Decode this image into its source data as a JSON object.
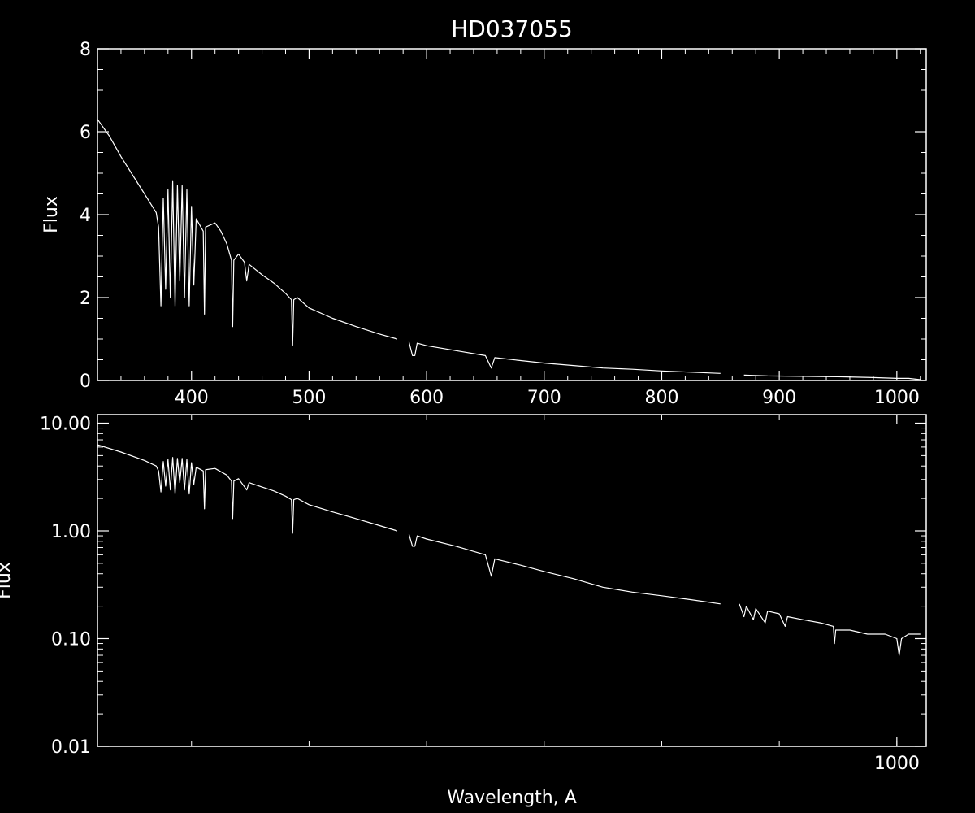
{
  "title": "HD037055",
  "colors": {
    "background": "#000000",
    "foreground": "#ffffff"
  },
  "chart_data": [
    {
      "type": "line",
      "panel": "top",
      "scale": "linear",
      "ylabel": "Flux",
      "xlabel": "",
      "xlim": [
        320,
        1025
      ],
      "ylim": [
        0,
        8
      ],
      "x_ticks": [
        {
          "value": 400,
          "label": "400"
        },
        {
          "value": 500,
          "label": "500"
        },
        {
          "value": 600,
          "label": "600"
        },
        {
          "value": 700,
          "label": "700"
        },
        {
          "value": 800,
          "label": "800"
        },
        {
          "value": 900,
          "label": "900"
        },
        {
          "value": 1000,
          "label": "1000"
        }
      ],
      "y_ticks": [
        {
          "value": 0,
          "label": "0"
        },
        {
          "value": 2,
          "label": "2"
        },
        {
          "value": 4,
          "label": "4"
        },
        {
          "value": 6,
          "label": "6"
        },
        {
          "value": 8,
          "label": "8"
        }
      ],
      "series": [
        {
          "segments": [
            [
              [
                320,
                6.3
              ],
              [
                330,
                5.9
              ],
              [
                340,
                5.4
              ],
              [
                350,
                4.95
              ],
              [
                360,
                4.5
              ],
              [
                370,
                4.05
              ],
              [
                372,
                3.7
              ],
              [
                374,
                1.8
              ],
              [
                376,
                4.4
              ],
              [
                378,
                2.2
              ],
              [
                380,
                4.6
              ],
              [
                382,
                2.0
              ],
              [
                384,
                4.8
              ],
              [
                386,
                1.8
              ],
              [
                388,
                4.7
              ],
              [
                390,
                2.4
              ],
              [
                392,
                4.7
              ],
              [
                394,
                2.0
              ],
              [
                396,
                4.6
              ],
              [
                398,
                1.8
              ],
              [
                400,
                4.2
              ],
              [
                402,
                2.3
              ],
              [
                404,
                3.9
              ],
              [
                406,
                3.8
              ],
              [
                410,
                3.6
              ],
              [
                411,
                1.6
              ],
              [
                412,
                3.7
              ],
              [
                420,
                3.8
              ],
              [
                425,
                3.6
              ],
              [
                430,
                3.3
              ],
              [
                434,
                2.9
              ],
              [
                435,
                1.3
              ],
              [
                436,
                2.9
              ],
              [
                440,
                3.05
              ],
              [
                445,
                2.85
              ],
              [
                447,
                2.4
              ],
              [
                449,
                2.8
              ],
              [
                460,
                2.55
              ],
              [
                470,
                2.35
              ],
              [
                480,
                2.1
              ],
              [
                485,
                1.95
              ],
              [
                486,
                0.85
              ],
              [
                487,
                1.95
              ],
              [
                490,
                2.0
              ],
              [
                500,
                1.75
              ],
              [
                520,
                1.5
              ],
              [
                540,
                1.3
              ],
              [
                560,
                1.12
              ],
              [
                575,
                1.0
              ]
            ],
            [
              [
                585,
                0.93
              ],
              [
                588,
                0.6
              ],
              [
                590,
                0.6
              ],
              [
                592,
                0.9
              ],
              [
                600,
                0.84
              ],
              [
                625,
                0.72
              ],
              [
                650,
                0.6
              ],
              [
                655,
                0.3
              ],
              [
                658,
                0.55
              ],
              [
                680,
                0.48
              ],
              [
                700,
                0.42
              ],
              [
                725,
                0.36
              ],
              [
                750,
                0.3
              ],
              [
                775,
                0.27
              ],
              [
                800,
                0.23
              ],
              [
                825,
                0.2
              ],
              [
                850,
                0.17
              ]
            ],
            [
              [
                870,
                0.13
              ],
              [
                890,
                0.11
              ],
              [
                920,
                0.1
              ],
              [
                950,
                0.09
              ],
              [
                980,
                0.07
              ],
              [
                1000,
                0.05
              ],
              [
                1010,
                0.05
              ],
              [
                1020,
                0.02
              ]
            ]
          ]
        }
      ]
    },
    {
      "type": "line",
      "panel": "bottom",
      "scale": "log",
      "ylabel": "Flux",
      "xlabel": "Wavelength, A",
      "xlim": [
        320,
        1025
      ],
      "ylim": [
        0.01,
        12
      ],
      "x_ticks": [
        {
          "value": 1000,
          "label": "1000"
        }
      ],
      "y_ticks": [
        {
          "value": 0.01,
          "label": "0.01"
        },
        {
          "value": 0.1,
          "label": "0.10"
        },
        {
          "value": 1,
          "label": "1.00"
        },
        {
          "value": 10,
          "label": "10.00"
        }
      ],
      "series": [
        {
          "segments": [
            [
              [
                320,
                6.3
              ],
              [
                340,
                5.4
              ],
              [
                360,
                4.5
              ],
              [
                370,
                4.0
              ],
              [
                372,
                3.6
              ],
              [
                374,
                2.3
              ],
              [
                376,
                4.4
              ],
              [
                378,
                2.6
              ],
              [
                380,
                4.6
              ],
              [
                382,
                2.4
              ],
              [
                384,
                4.8
              ],
              [
                386,
                2.2
              ],
              [
                388,
                4.7
              ],
              [
                390,
                2.8
              ],
              [
                392,
                4.7
              ],
              [
                394,
                2.4
              ],
              [
                396,
                4.6
              ],
              [
                398,
                2.2
              ],
              [
                400,
                4.3
              ],
              [
                402,
                2.7
              ],
              [
                404,
                3.9
              ],
              [
                406,
                3.8
              ],
              [
                410,
                3.6
              ],
              [
                411,
                1.6
              ],
              [
                412,
                3.7
              ],
              [
                420,
                3.8
              ],
              [
                430,
                3.3
              ],
              [
                434,
                2.9
              ],
              [
                435,
                1.3
              ],
              [
                436,
                2.9
              ],
              [
                440,
                3.05
              ],
              [
                447,
                2.4
              ],
              [
                449,
                2.8
              ],
              [
                460,
                2.55
              ],
              [
                470,
                2.35
              ],
              [
                480,
                2.1
              ],
              [
                485,
                1.95
              ],
              [
                486,
                0.95
              ],
              [
                487,
                1.95
              ],
              [
                490,
                2.0
              ],
              [
                500,
                1.75
              ],
              [
                520,
                1.5
              ],
              [
                540,
                1.3
              ],
              [
                560,
                1.12
              ],
              [
                575,
                1.0
              ]
            ],
            [
              [
                585,
                0.93
              ],
              [
                588,
                0.72
              ],
              [
                590,
                0.72
              ],
              [
                592,
                0.9
              ],
              [
                600,
                0.84
              ],
              [
                625,
                0.72
              ],
              [
                650,
                0.6
              ],
              [
                655,
                0.38
              ],
              [
                658,
                0.55
              ],
              [
                680,
                0.48
              ],
              [
                700,
                0.42
              ],
              [
                725,
                0.36
              ],
              [
                750,
                0.3
              ],
              [
                775,
                0.27
              ],
              [
                800,
                0.25
              ],
              [
                825,
                0.23
              ],
              [
                850,
                0.21
              ]
            ],
            [
              [
                866,
                0.21
              ],
              [
                870,
                0.16
              ],
              [
                872,
                0.2
              ],
              [
                878,
                0.15
              ],
              [
                880,
                0.19
              ],
              [
                888,
                0.14
              ],
              [
                890,
                0.18
              ],
              [
                900,
                0.17
              ],
              [
                905,
                0.13
              ],
              [
                907,
                0.16
              ],
              [
                920,
                0.15
              ],
              [
                935,
                0.14
              ],
              [
                946,
                0.13
              ],
              [
                947,
                0.09
              ],
              [
                948,
                0.12
              ],
              [
                960,
                0.12
              ],
              [
                975,
                0.11
              ],
              [
                990,
                0.11
              ],
              [
                1000,
                0.1
              ],
              [
                1002,
                0.07
              ],
              [
                1004,
                0.1
              ],
              [
                1010,
                0.11
              ],
              [
                1020,
                0.11
              ]
            ]
          ]
        }
      ]
    }
  ]
}
